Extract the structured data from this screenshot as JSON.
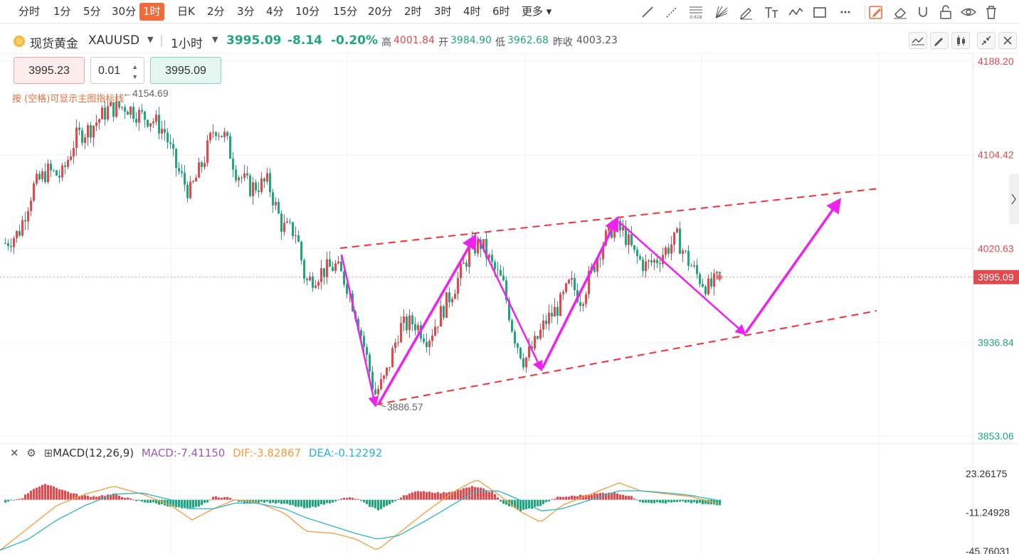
{
  "toolbar": {
    "periods": [
      "分时",
      "1分",
      "5分",
      "30分",
      "1时",
      "日K",
      "2分",
      "3分",
      "4分",
      "10分",
      "15分",
      "20分",
      "2时",
      "3时",
      "4时",
      "6时",
      "更多"
    ],
    "active_period": "1时",
    "tools": [
      "trend-line-icon",
      "ray-line-icon",
      "fibonacci-icon",
      "gann-fan-icon",
      "brush-icon",
      "text-tool-icon",
      "wave-icon",
      "rectangle-icon",
      "more-dots-icon",
      "edit-drawing-icon",
      "eraser-icon",
      "magnet-icon",
      "lock-icon",
      "eye-icon",
      "trash-icon"
    ],
    "fib_label": "0.618"
  },
  "symbol": {
    "name": "现货黄金",
    "code": "XAUUSD",
    "interval": "1小时",
    "price": "3995.09",
    "change": "-8.14",
    "change_pct": "-0.20%",
    "high_label": "高",
    "high": "4001.84",
    "open_label": "开",
    "open": "3984.90",
    "low_label": "低",
    "low": "3962.68",
    "prev_close_label": "昨收",
    "prev_close": "4003.23"
  },
  "trade": {
    "sell_price": "3995.23",
    "lot": "0.01",
    "buy_price": "3995.09"
  },
  "hint": "按 (空格)可显示主图指标线",
  "chart_annotations": {
    "max_label": "4154.69",
    "min_label": "3886.57"
  },
  "price_axis": {
    "ticks": [
      "4188.20",
      "4104.42",
      "4020.63",
      "3936.84",
      "3853.06"
    ],
    "current": "3995.09"
  },
  "macd": {
    "title": "MACD(12,26,9)",
    "macd_value": "MACD:-7.41150",
    "dif_value": "DIF:-3.82867",
    "dea_value": "DEA:-0.12292",
    "ticks": [
      "23.26175",
      "-11.24928",
      "-45.76031"
    ]
  },
  "colors": {
    "up": "#e0494d",
    "down": "#20a57f",
    "accent": "#f26a3a",
    "channel": "#f0303a",
    "arrows": "#ee22ee",
    "macd_label": "#9b59b6",
    "dif": "#f39c3a",
    "dea": "#2bb3c9"
  }
}
